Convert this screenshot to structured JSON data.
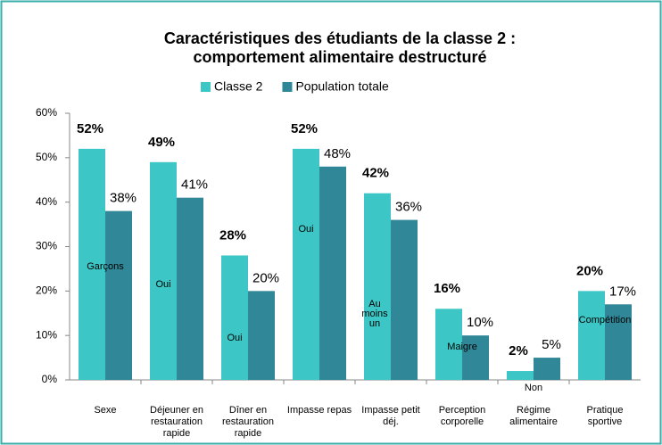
{
  "chart_data": {
    "type": "bar",
    "title": "Caractéristiques des étudiants de la classe 2 :",
    "subtitle": "comportement alimentaire destructuré",
    "categories": [
      "Sexe",
      "Déjeuner en restauration rapide",
      "Dîner en restauration rapide",
      "Impasse repas",
      "Impasse petit déj.",
      "Perception corporelle",
      "Régime alimentaire",
      "Pratique sportive"
    ],
    "annotations": [
      "Garçons",
      "Oui",
      "Oui",
      "Oui",
      "Au moins un",
      "Maigre",
      "Non",
      "Compétition"
    ],
    "series": [
      {
        "name": "Classe 2",
        "color": "#3cc6c6",
        "values": [
          52,
          49,
          28,
          52,
          42,
          16,
          2,
          20
        ],
        "value_labels": [
          "52%",
          "49%",
          "28%",
          "52%",
          "42%",
          "16%",
          "2%",
          "20%"
        ]
      },
      {
        "name": "Population totale",
        "color": "#2f8797",
        "values": [
          38,
          41,
          20,
          48,
          36,
          10,
          5,
          17
        ],
        "value_labels": [
          "38%",
          "41%",
          "20%",
          "48%",
          "36%",
          "10%",
          "5%",
          "17%"
        ]
      }
    ],
    "ylim": [
      0,
      60
    ],
    "yticks": [
      {
        "value": 0,
        "label": "0%"
      },
      {
        "value": 10,
        "label": "10%"
      },
      {
        "value": 20,
        "label": "20%"
      },
      {
        "value": 30,
        "label": "30%"
      },
      {
        "value": 40,
        "label": "40%"
      },
      {
        "value": 50,
        "label": "50%"
      },
      {
        "value": 60,
        "label": "60%"
      }
    ],
    "legend": "top"
  }
}
